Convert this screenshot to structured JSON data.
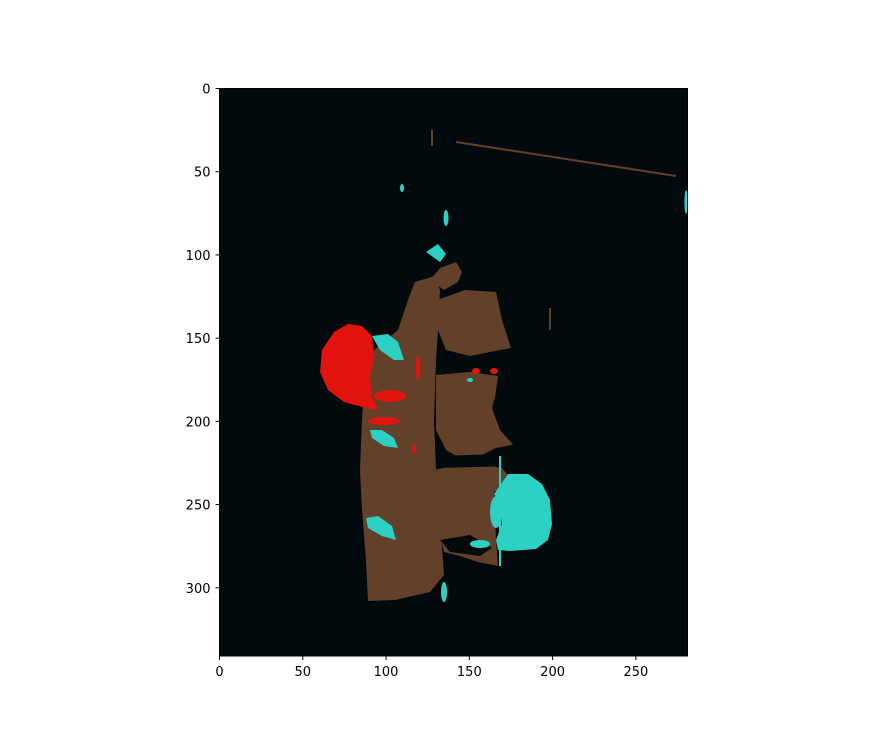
{
  "chart_data": {
    "type": "heatmap",
    "title": "",
    "xlabel": "",
    "ylabel": "",
    "xlim": [
      0,
      281
    ],
    "ylim": [
      341,
      0
    ],
    "x_ticks": [
      0,
      50,
      100,
      150,
      200,
      250
    ],
    "y_ticks": [
      0,
      50,
      100,
      150,
      200,
      250,
      300
    ],
    "x_tick_labels": [
      "0",
      "50",
      "100",
      "150",
      "200",
      "250"
    ],
    "y_tick_labels": [
      "0",
      "50",
      "100",
      "150",
      "200",
      "250",
      "300"
    ],
    "grid": false,
    "image_description_classes": [
      "background",
      "housing",
      "red-light",
      "green-light"
    ],
    "colors": {
      "background": "#030a0e",
      "housing": "#62402a",
      "red_light": "#e3130d",
      "green_light": "#2cd1c3"
    }
  }
}
